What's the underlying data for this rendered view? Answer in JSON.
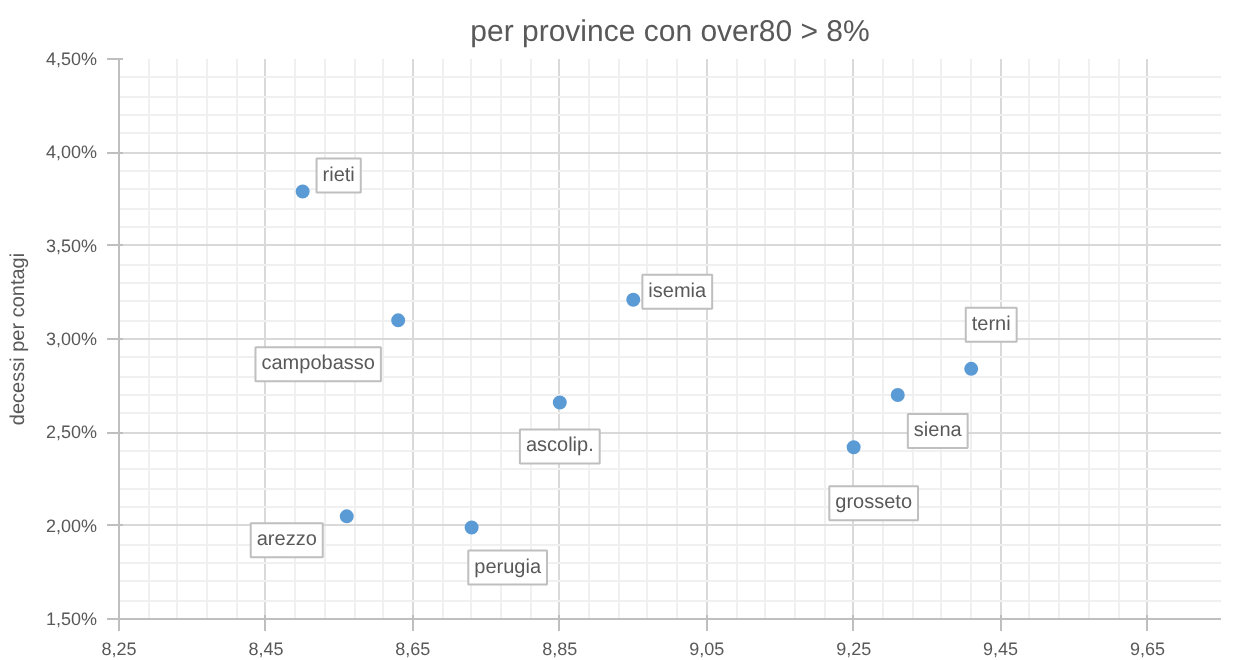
{
  "chart_data": {
    "type": "scatter",
    "subtitle": "per province con over80 > 8%",
    "ylabel": "decessi per contagi",
    "x": [
      8.5,
      8.63,
      8.95,
      8.85,
      8.56,
      8.73,
      9.25,
      9.31,
      9.41
    ],
    "series": [
      {
        "color": "#5b9bd5",
        "values": [
          3.79,
          3.1,
          3.21,
          2.66,
          2.05,
          1.99,
          2.42,
          2.7,
          2.84
        ]
      }
    ],
    "annotations": [
      {
        "text": "rieti",
        "x": 8.5,
        "y": 3.79
      },
      {
        "text": "campobasso",
        "x": 8.63,
        "y": 3.1
      },
      {
        "text": "isemia",
        "x": 8.95,
        "y": 3.21
      },
      {
        "text": "ascolip.",
        "x": 8.85,
        "y": 2.66
      },
      {
        "text": "arezzo",
        "x": 8.56,
        "y": 2.05
      },
      {
        "text": "perugia",
        "x": 8.73,
        "y": 1.99
      },
      {
        "text": "grosseto",
        "x": 9.25,
        "y": 2.42
      },
      {
        "text": "siena",
        "x": 9.31,
        "y": 2.7
      },
      {
        "text": "terni",
        "x": 9.41,
        "y": 2.84
      }
    ],
    "xlim": [
      8.25,
      9.75
    ],
    "ylim": [
      1.5,
      4.5
    ],
    "xticks": [
      {
        "value": 8.25,
        "label": "8,25"
      },
      {
        "value": 8.45,
        "label": "8,45"
      },
      {
        "value": 8.65,
        "label": "8,65"
      },
      {
        "value": 8.85,
        "label": "8,85"
      },
      {
        "value": 9.05,
        "label": "9,05"
      },
      {
        "value": 9.25,
        "label": "9,25"
      },
      {
        "value": 9.45,
        "label": "9,45"
      },
      {
        "value": 9.65,
        "label": "9,65"
      }
    ],
    "yticks": [
      {
        "value": 1.5,
        "label": "1,50%"
      },
      {
        "value": 2.0,
        "label": "2,00%"
      },
      {
        "value": 2.5,
        "label": "2,50%"
      },
      {
        "value": 3.0,
        "label": "3,00%"
      },
      {
        "value": 3.5,
        "label": "3,50%"
      },
      {
        "value": 4.0,
        "label": "4,00%"
      },
      {
        "value": 4.5,
        "label": "4,50%"
      }
    ],
    "grid": true,
    "marker": "circle"
  }
}
